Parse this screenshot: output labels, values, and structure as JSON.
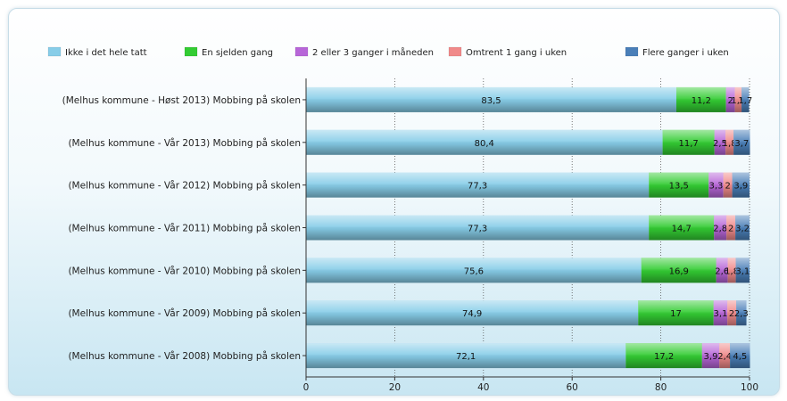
{
  "chart_data": {
    "type": "bar",
    "orientation": "horizontal",
    "stacked": true,
    "categories": [
      "(Melhus kommune - Høst 2013) Mobbing på skolen",
      "(Melhus kommune - Vår 2013) Mobbing på skolen",
      "(Melhus kommune - Vår 2012) Mobbing på skolen",
      "(Melhus kommune - Vår 2011) Mobbing på skolen",
      "(Melhus kommune - Vår 2010) Mobbing på skolen",
      "(Melhus kommune - Vår 2009) Mobbing på skolen",
      "(Melhus kommune - Vår 2008) Mobbing på skolen"
    ],
    "series": [
      {
        "name": "Ikke i det hele tatt",
        "color": "#87cde8",
        "values": [
          83.5,
          80.4,
          77.3,
          77.3,
          75.6,
          74.9,
          72.1
        ],
        "labels": [
          "83,5",
          "80,4",
          "77,3",
          "77,3",
          "75,6",
          "74,9",
          "72,1"
        ]
      },
      {
        "name": "En sjelden gang",
        "color": "#33cc33",
        "values": [
          11.2,
          11.7,
          13.5,
          14.7,
          16.9,
          17.0,
          17.2
        ],
        "labels": [
          "11,2",
          "11,7",
          "13,5",
          "14,7",
          "16,9",
          "17",
          "17,2"
        ]
      },
      {
        "name": "2 eller 3 ganger i måneden",
        "color": "#b766d8",
        "values": [
          2.0,
          2.5,
          3.3,
          2.8,
          2.6,
          3.1,
          3.9
        ],
        "labels": [
          "2",
          "2,5",
          "3,3",
          "2,8",
          "2,6",
          "3,1",
          "3,9"
        ]
      },
      {
        "name": "Omtrent 1 gang i uken",
        "color": "#f08a8a",
        "values": [
          1.5,
          1.8,
          2.0,
          2.0,
          1.8,
          2.0,
          2.4
        ],
        "labels": [
          "1,5",
          "1,8",
          "2",
          "2",
          "1,8",
          "2",
          "2,4"
        ]
      },
      {
        "name": "Flere ganger i uken",
        "color": "#4a7fb8",
        "values": [
          1.7,
          3.7,
          3.9,
          3.2,
          3.1,
          2.3,
          4.5
        ],
        "labels": [
          "1,7",
          "3,7",
          "3,9",
          "3,2",
          "3,1",
          "2,3",
          "4,5"
        ]
      }
    ],
    "xlim": [
      0,
      100
    ],
    "xticks": [
      0,
      20,
      40,
      60,
      80,
      100
    ],
    "grid": "vertical-dotted",
    "legend": "top"
  }
}
